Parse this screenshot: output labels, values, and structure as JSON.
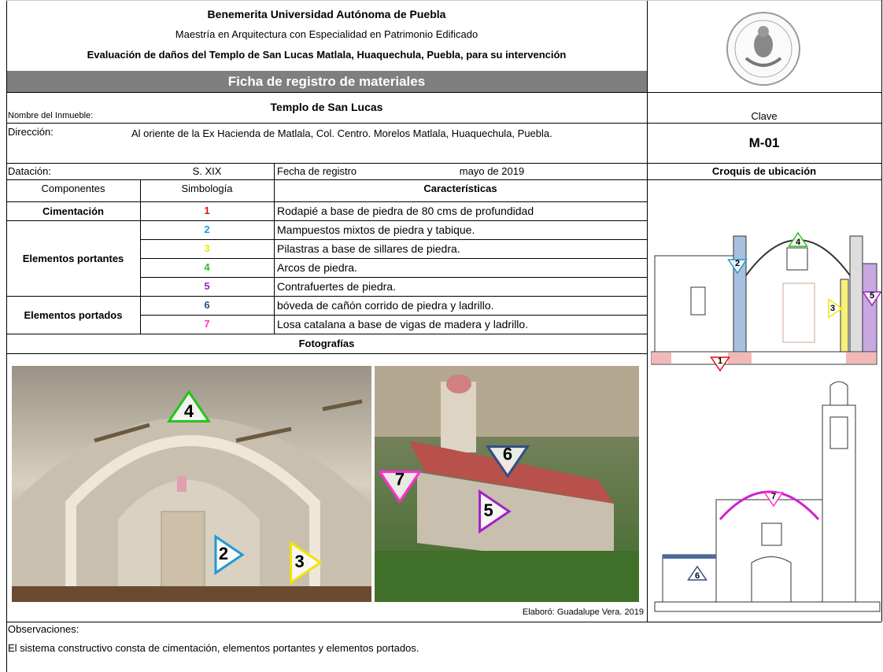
{
  "header": {
    "institution": "Benemerita Universidad Autónoma de Puebla",
    "program": "Maestría en Arquitectura con Especialidad en Patrimonio Edificado",
    "project": "Evaluación de daños del Templo de San Lucas Matlala, Huaquechula, Puebla, para su intervención",
    "section": "Ficha de registro de materiales"
  },
  "fields": {
    "name_label": "Nombre del Inmueble:",
    "name": "Templo de San Lucas",
    "key_label": "Clave",
    "key": "M-01",
    "address_label": "Dirección:",
    "address": "Al oriente de la Ex Hacienda de Matlala, Col. Centro. Morelos Matlala, Huaquechula, Puebla.",
    "dating_label": "Datación:",
    "dating": "S. XIX",
    "date_label": "Fecha de registro",
    "date": "mayo de 2019",
    "sketch_label": "Croquis de ubicación"
  },
  "table": {
    "headers": [
      "Componentes",
      "Simbología",
      "Características"
    ],
    "groups": [
      {
        "name": "Cimentación",
        "rows": [
          {
            "symbol": "1",
            "color": "#e01010",
            "text": "Rodapié a base de piedra de 80 cms de profundidad"
          }
        ]
      },
      {
        "name": "Elementos portantes",
        "rows": [
          {
            "symbol": "2",
            "color": "#1e9ad6",
            "text": "Mampuestos mixtos de piedra y tabique."
          },
          {
            "symbol": "3",
            "color": "#f0e400",
            "text": "Pilastras a base de sillares de piedra."
          },
          {
            "symbol": "4",
            "color": "#22c41e",
            "text": "Arcos de piedra."
          },
          {
            "symbol": "5",
            "color": "#a020c8",
            "text": "Contrafuertes de piedra."
          }
        ]
      },
      {
        "name": "Elementos portados",
        "rows": [
          {
            "symbol": "6",
            "color": "#2f4f86",
            "text": "bóveda de cañón corrido de piedra y ladrillo."
          },
          {
            "symbol": "7",
            "color": "#ff2fd0",
            "text": "Losa catalana a base de vigas de madera y ladrillo."
          }
        ]
      }
    ]
  },
  "photos": {
    "label": "Fotografías",
    "credit": "Elaboró: Guadalupe Vera. 2019",
    "interior_markers": [
      "4",
      "2",
      "3"
    ],
    "exterior_markers": [
      "6",
      "7",
      "5"
    ]
  },
  "sketches": {
    "section_markers": [
      "4",
      "2",
      "3",
      "5",
      "1"
    ],
    "elevation_markers": [
      "7",
      "6"
    ]
  },
  "observations": {
    "label": "Observaciones:",
    "text": "El sistema constructivo consta de cimentación, elementos portantes y elementos portados."
  }
}
